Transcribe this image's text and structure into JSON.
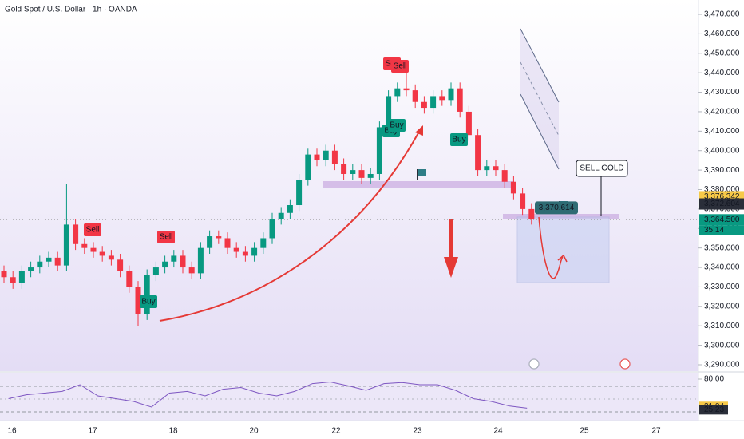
{
  "chart_data": {
    "type": "candlestick",
    "title": "Gold Spot / U.S. Dollar · 1h · OANDA",
    "up_color": "#089981",
    "down_color": "#f23645",
    "open": [
      3338,
      3335,
      3332,
      3338,
      3340,
      3343,
      3345,
      3341,
      3362,
      3352,
      3350,
      3348,
      3346,
      3344,
      3338,
      3330,
      3316,
      3336,
      3340,
      3343,
      3346,
      3340,
      3337,
      3350,
      3356,
      3355,
      3350,
      3348,
      3346,
      3350,
      3355,
      3365,
      3368,
      3372,
      3385,
      3398,
      3395,
      3400,
      3393,
      3388,
      3390,
      3386,
      3388,
      3412,
      3428,
      3432,
      3431,
      3425,
      3422,
      3428,
      3426,
      3432,
      3420,
      3408,
      3390,
      3392,
      3390,
      3384,
      3378,
      3370
    ],
    "high": [
      3341,
      3338,
      3341,
      3343,
      3346,
      3348,
      3348,
      3383,
      3365,
      3355,
      3353,
      3351,
      3349,
      3347,
      3341,
      3333,
      3339,
      3343,
      3346,
      3349,
      3349,
      3343,
      3353,
      3359,
      3359,
      3358,
      3353,
      3351,
      3353,
      3358,
      3368,
      3371,
      3375,
      3388,
      3401,
      3401,
      3403,
      3403,
      3396,
      3393,
      3393,
      3391,
      3415,
      3431,
      3435,
      3440,
      3434,
      3428,
      3431,
      3431,
      3435,
      3435,
      3423,
      3411,
      3395,
      3395,
      3393,
      3387,
      3381,
      3373
    ],
    "low": [
      3332,
      3329,
      3329,
      3335,
      3337,
      3340,
      3338,
      3338,
      3349,
      3347,
      3345,
      3343,
      3341,
      3335,
      3327,
      3310,
      3313,
      3333,
      3337,
      3340,
      3337,
      3334,
      3334,
      3347,
      3352,
      3347,
      3345,
      3343,
      3343,
      3347,
      3352,
      3362,
      3365,
      3369,
      3382,
      3392,
      3392,
      3390,
      3385,
      3385,
      3383,
      3383,
      3385,
      3409,
      3425,
      3428,
      3422,
      3419,
      3419,
      3423,
      3423,
      3417,
      3405,
      3387,
      3387,
      3387,
      3381,
      3375,
      3367,
      3362
    ],
    "close": [
      3335,
      3332,
      3338,
      3340,
      3343,
      3345,
      3341,
      3362,
      3352,
      3350,
      3348,
      3346,
      3344,
      3338,
      3330,
      3316,
      3336,
      3340,
      3343,
      3346,
      3340,
      3337,
      3350,
      3356,
      3355,
      3350,
      3348,
      3346,
      3350,
      3355,
      3365,
      3368,
      3372,
      3385,
      3398,
      3395,
      3400,
      3393,
      3388,
      3390,
      3386,
      3388,
      3412,
      3428,
      3432,
      3431,
      3425,
      3422,
      3428,
      3426,
      3432,
      3420,
      3408,
      3390,
      3392,
      3390,
      3384,
      3378,
      3370,
      3365
    ],
    "ylim": [
      3290,
      3470
    ],
    "yticks": [
      {
        "value": 3290,
        "label": "3,290.000"
      },
      {
        "value": 3300,
        "label": "3,300.000"
      },
      {
        "value": 3310,
        "label": "3,310.000"
      },
      {
        "value": 3320,
        "label": "3,320.000"
      },
      {
        "value": 3330,
        "label": "3,330.000"
      },
      {
        "value": 3340,
        "label": "3,340.000"
      },
      {
        "value": 3350,
        "label": "3,350.000"
      },
      {
        "value": 3360,
        "label": "3,360.000"
      },
      {
        "value": 3370,
        "label": "3,370.000"
      },
      {
        "value": 3380,
        "label": "3,380.000"
      },
      {
        "value": 3390,
        "label": "3,390.000"
      },
      {
        "value": 3400,
        "label": "3,400.000"
      },
      {
        "value": 3410,
        "label": "3,410.000"
      },
      {
        "value": 3420,
        "label": "3,420.000"
      },
      {
        "value": 3430,
        "label": "3,430.000"
      },
      {
        "value": 3440,
        "label": "3,440.000"
      },
      {
        "value": 3450,
        "label": "3,450.000"
      },
      {
        "value": 3460,
        "label": "3,460.000"
      },
      {
        "value": 3470,
        "label": "3,470.000"
      }
    ],
    "xtick_labels": [
      "16",
      "17",
      "18",
      "20",
      "22",
      "23",
      "24",
      "25",
      "27"
    ],
    "price_badges": [
      {
        "value": 3376.342,
        "label": "3,376.342",
        "color": "#f7c948",
        "text_color": "#131722"
      },
      {
        "value": 3372.604,
        "label": "3,372.604",
        "color": "#2a2e39",
        "text_color": "#ffffff"
      },
      {
        "value": 3364.5,
        "label": "3,364.500",
        "color": "#089981",
        "text_color": "#ffffff"
      }
    ],
    "countdown": "35:14",
    "signals": [
      {
        "label": "Sell",
        "kind": "sell"
      },
      {
        "label": "Sell",
        "kind": "sell"
      },
      {
        "label": "Sell",
        "kind": "sell"
      },
      {
        "label": "Sell",
        "kind": "sell"
      },
      {
        "label": "Buy",
        "kind": "buy"
      },
      {
        "label": "Buy",
        "kind": "buy"
      },
      {
        "label": "Buy",
        "kind": "buy"
      },
      {
        "label": "Buy",
        "kind": "buy"
      }
    ],
    "annotation": "SELL GOLD",
    "level_label": {
      "value": 3370.614,
      "label": "3,370.614"
    },
    "rsi": {
      "values": [
        45,
        52,
        55,
        58,
        70,
        50,
        45,
        40,
        30,
        55,
        58,
        50,
        62,
        65,
        55,
        50,
        58,
        72,
        75,
        68,
        60,
        72,
        74,
        70,
        70,
        60,
        45,
        40,
        32,
        28
      ],
      "color": "#7e57c2",
      "ylim": [
        10,
        90
      ],
      "yticks": [
        {
          "value": 80,
          "label": "80.00"
        }
      ],
      "badges": [
        {
          "value": 31.04,
          "label": "31.04",
          "color": "#f7c948",
          "text_color": "#131722"
        },
        {
          "value": 25.23,
          "label": "25.23",
          "color": "#2a2e39",
          "text_color": "#ffffff"
        }
      ]
    }
  }
}
